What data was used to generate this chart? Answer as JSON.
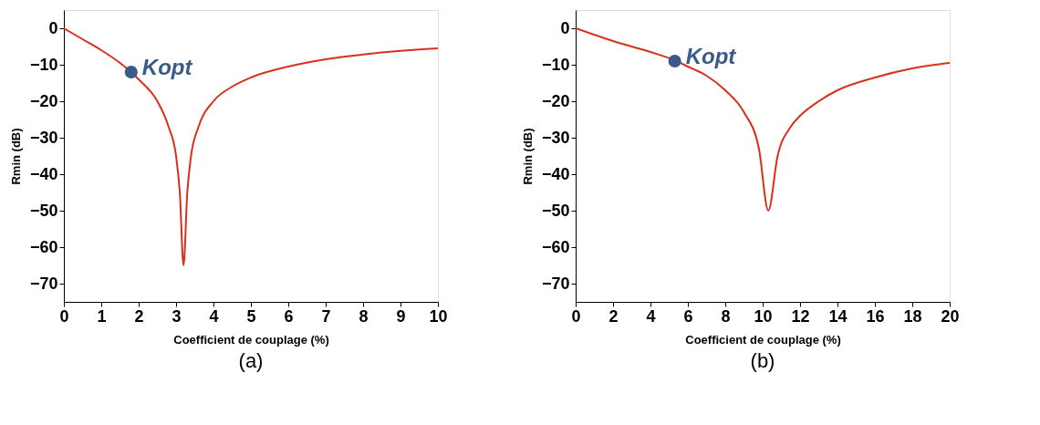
{
  "chart_data": [
    {
      "type": "line",
      "xlabel": "Coefficient de couplage (%)",
      "ylabel": "Rmin (dB)",
      "xlim": [
        0,
        10
      ],
      "ylim": [
        -75,
        5
      ],
      "xticks": [
        0,
        1,
        2,
        3,
        4,
        5,
        6,
        7,
        8,
        9,
        10
      ],
      "yticks": [
        0,
        -10,
        -20,
        -30,
        -40,
        -50,
        -60,
        -70
      ],
      "grid": false,
      "line_style": "solid",
      "annotations": [
        {
          "text": "Kopt",
          "x": 1.8,
          "y": -12
        },
        "(a)"
      ],
      "series": [
        {
          "color": "#d9301c",
          "x": [
            0,
            0.5,
            1,
            1.5,
            1.8,
            2,
            2.5,
            2.8,
            3.0,
            3.1,
            3.2,
            3.3,
            3.4,
            3.6,
            4,
            4.5,
            5,
            6,
            7,
            8,
            9,
            10
          ],
          "values": [
            0,
            -3,
            -6,
            -9.5,
            -12,
            -14,
            -20,
            -27,
            -35,
            -45,
            -65,
            -45,
            -35,
            -27,
            -20,
            -16,
            -13.5,
            -10.5,
            -8.5,
            -7.2,
            -6.2,
            -5.5
          ]
        },
        {
          "type": "scatter",
          "marker": "circle",
          "color": "#3b5a8a",
          "x": [
            1.8
          ],
          "values": [
            -12
          ]
        }
      ]
    },
    {
      "type": "line",
      "xlabel": "Coefficient de couplage (%)",
      "ylabel": "Rmin (dB)",
      "xlim": [
        0,
        20
      ],
      "ylim": [
        -75,
        5
      ],
      "xticks": [
        0,
        2,
        4,
        6,
        8,
        10,
        12,
        14,
        16,
        18,
        20
      ],
      "yticks": [
        0,
        -10,
        -20,
        -30,
        -40,
        -50,
        -60,
        -70
      ],
      "grid": false,
      "line_style": "solid",
      "annotations": [
        {
          "text": "Kopt",
          "x": 5.3,
          "y": -9
        },
        "(b)"
      ],
      "series": [
        {
          "color": "#d9301c",
          "x": [
            0,
            2,
            4,
            5.3,
            6,
            7,
            8,
            9,
            9.8,
            10.3,
            10.8,
            11.5,
            12,
            13,
            14,
            16,
            18,
            20
          ],
          "values": [
            0,
            -3.5,
            -6.5,
            -8.8,
            -10.5,
            -13,
            -17,
            -23,
            -33,
            -50,
            -35,
            -27,
            -24,
            -20,
            -17,
            -13.5,
            -11,
            -9.5
          ]
        },
        {
          "type": "scatter",
          "marker": "circle",
          "color": "#3b5a8a",
          "x": [
            5.3
          ],
          "values": [
            -9
          ]
        }
      ]
    }
  ]
}
